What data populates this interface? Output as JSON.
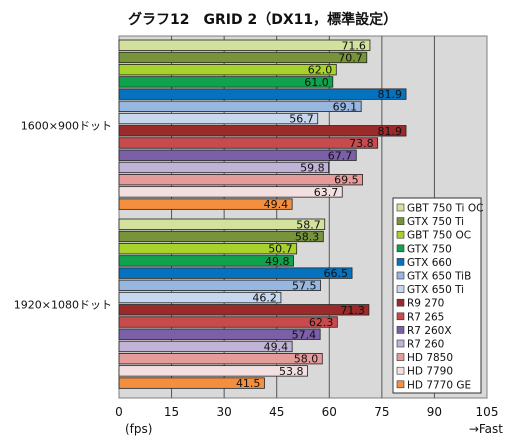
{
  "chart_data": {
    "type": "bar",
    "orientation": "horizontal",
    "title": "グラフ12　GRID 2（DX11，標準設定）",
    "xlabel": "(fps)",
    "x_direction_label": "→Fast",
    "xlim": [
      0,
      105
    ],
    "xticks": [
      0,
      15,
      30,
      45,
      60,
      75,
      90,
      105
    ],
    "grid": true,
    "legend_position": "right",
    "groups": [
      {
        "name": "1600×900ドット",
        "values": [
          71.6,
          70.7,
          62.0,
          61.0,
          81.9,
          69.1,
          56.7,
          81.9,
          73.8,
          67.7,
          59.8,
          69.5,
          63.7,
          49.4
        ]
      },
      {
        "name": "1920×1080ドット",
        "values": [
          58.7,
          58.3,
          50.7,
          49.8,
          66.5,
          57.5,
          46.2,
          71.3,
          62.3,
          57.4,
          49.4,
          58.0,
          53.8,
          41.5
        ]
      }
    ],
    "value_labels": [
      [
        "71.6",
        "70.7",
        "62.0",
        "61.0",
        "81.9",
        "69.1",
        "56.7",
        "81.9",
        "73.8",
        "67.7",
        "59.8",
        "69.5",
        "63.7",
        "49.4"
      ],
      [
        "58.7",
        "58.3",
        "50.7",
        "49.8",
        "66.5",
        "57.5",
        "46.2",
        "71.3",
        "62.3",
        "57.4",
        "49.4",
        "58.0",
        "53.8",
        "41.5"
      ]
    ],
    "series": [
      {
        "name": "GBT 750 Ti OC",
        "color": "#d2e29c"
      },
      {
        "name": "GTX 750 Ti",
        "color": "#77943a"
      },
      {
        "name": "GBT 750 OC",
        "color": "#a6d22b"
      },
      {
        "name": "GTX 750",
        "color": "#10a34e"
      },
      {
        "name": "GTX 660",
        "color": "#0572c0"
      },
      {
        "name": "GTX 650 TiB",
        "color": "#97b6e0"
      },
      {
        "name": "GTX 650 Ti",
        "color": "#c7d8ee"
      },
      {
        "name": "R9 270",
        "color": "#9b2b2b"
      },
      {
        "name": "R7 265",
        "color": "#c84a4d"
      },
      {
        "name": "R7 260X",
        "color": "#7b5fa7"
      },
      {
        "name": "R7 260",
        "color": "#c1b3d6"
      },
      {
        "name": "HD 7850",
        "color": "#e49b99"
      },
      {
        "name": "HD 7790",
        "color": "#f4dfe0"
      },
      {
        "name": "HD 7770 GE",
        "color": "#f38f3e"
      }
    ]
  }
}
